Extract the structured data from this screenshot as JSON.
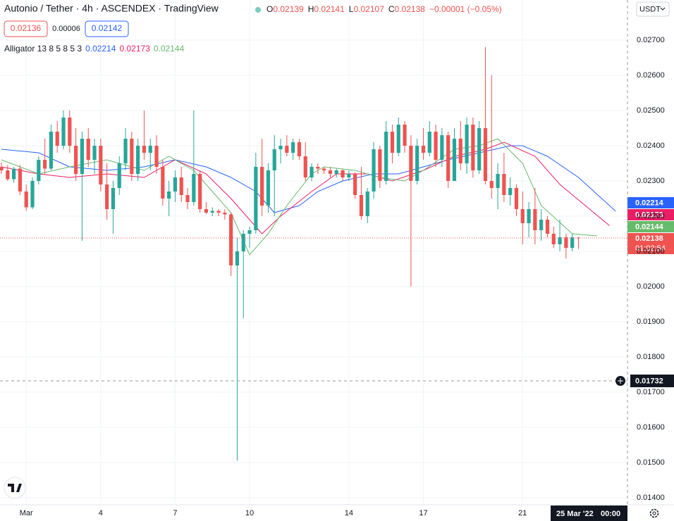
{
  "chart_data": {
    "type": "candlestick",
    "title": "Autonio / Tether · 4h · ASCENDEX · TradingView",
    "ohlc_labels": [
      "O",
      "H",
      "L",
      "C"
    ],
    "change": "−0.00001 (−0.05%)",
    "bid": 0.02136,
    "spread": 6e-05,
    "ask": 0.02142,
    "indicator": "Alligator 13 8 5 8 5 3",
    "currency": "USDT",
    "countdown": "01:02:54",
    "crosshair_price": 0.01732,
    "crosshair_time": "25 Mar '22",
    "crosshair_clock": "00:00",
    "up_color": "#26a69a",
    "down_color": "#ef5350",
    "grid": true,
    "ylim": [
      0.0138,
      0.02814
    ],
    "xlim": [
      -0.23,
      100.9
    ],
    "yticks": [
      {
        "value": 0.014,
        "label": "0.01400"
      },
      {
        "value": 0.015,
        "label": "0.01500"
      },
      {
        "value": 0.016,
        "label": "0.01600"
      },
      {
        "value": 0.017,
        "label": "0.01700"
      },
      {
        "value": 0.018,
        "label": "0.01800"
      },
      {
        "value": 0.019,
        "label": "0.01900"
      },
      {
        "value": 0.02,
        "label": "0.02000"
      },
      {
        "value": 0.021,
        "label": "0.02100"
      },
      {
        "value": 0.022,
        "label": "0.02200"
      },
      {
        "value": 0.023,
        "label": "0.02300"
      },
      {
        "value": 0.024,
        "label": "0.02400"
      },
      {
        "value": 0.025,
        "label": "0.02500"
      },
      {
        "value": 0.026,
        "label": "0.02600"
      },
      {
        "value": 0.027,
        "label": "0.02700"
      }
    ],
    "xticks": [
      {
        "value": 4,
        "label": "Mar"
      },
      {
        "value": 16,
        "label": "4"
      },
      {
        "value": 28,
        "label": "7"
      },
      {
        "value": 40,
        "label": "10"
      },
      {
        "value": 56,
        "label": "14"
      },
      {
        "value": 68,
        "label": "17"
      },
      {
        "value": 84,
        "label": "21"
      }
    ],
    "candles": [
      [
        0.0234,
        0.02352,
        0.0232,
        0.0233
      ],
      [
        0.0233,
        0.02345,
        0.023,
        0.02305
      ],
      [
        0.02305,
        0.0234,
        0.02295,
        0.02335
      ],
      [
        0.02335,
        0.02345,
        0.0226,
        0.0227
      ],
      [
        0.0227,
        0.0229,
        0.02215,
        0.02225
      ],
      [
        0.02225,
        0.0231,
        0.0222,
        0.023
      ],
      [
        0.023,
        0.0237,
        0.0229,
        0.0236
      ],
      [
        0.0236,
        0.0242,
        0.0232,
        0.02335
      ],
      [
        0.02335,
        0.0246,
        0.0233,
        0.0244
      ],
      [
        0.0244,
        0.0247,
        0.0238,
        0.024
      ],
      [
        0.024,
        0.025,
        0.0239,
        0.0248
      ],
      [
        0.0248,
        0.025,
        0.0238,
        0.024
      ],
      [
        0.024,
        0.0245,
        0.023,
        0.0232
      ],
      [
        0.0232,
        0.0244,
        0.0213,
        0.0242
      ],
      [
        0.0242,
        0.0245,
        0.0234,
        0.0236
      ],
      [
        0.0236,
        0.0242,
        0.0232,
        0.024
      ],
      [
        0.024,
        0.0242,
        0.0227,
        0.0229
      ],
      [
        0.0229,
        0.0235,
        0.0219,
        0.0222
      ],
      [
        0.0222,
        0.023,
        0.0215,
        0.0228
      ],
      [
        0.0228,
        0.0237,
        0.0226,
        0.0235
      ],
      [
        0.0235,
        0.0245,
        0.0233,
        0.0242
      ],
      [
        0.0242,
        0.0244,
        0.023,
        0.0232
      ],
      [
        0.0232,
        0.0242,
        0.023,
        0.024
      ],
      [
        0.024,
        0.025,
        0.0236,
        0.0238
      ],
      [
        0.0238,
        0.0242,
        0.0233,
        0.024
      ],
      [
        0.024,
        0.0243,
        0.0232,
        0.0234
      ],
      [
        0.0234,
        0.0236,
        0.0223,
        0.0225
      ],
      [
        0.0225,
        0.023,
        0.022,
        0.0227
      ],
      [
        0.0227,
        0.0233,
        0.0224,
        0.0231
      ],
      [
        0.0231,
        0.0234,
        0.0224,
        0.0226
      ],
      [
        0.0226,
        0.0228,
        0.0222,
        0.0224
      ],
      [
        0.0224,
        0.025,
        0.0223,
        0.0232
      ],
      [
        0.0232,
        0.0233,
        0.0221,
        0.0222
      ],
      [
        0.0222,
        0.0224,
        0.02205,
        0.0221
      ],
      [
        0.0221,
        0.02225,
        0.022,
        0.02215
      ],
      [
        0.02215,
        0.0222,
        0.022,
        0.0221
      ],
      [
        0.0221,
        0.0222,
        0.0219,
        0.02205
      ],
      [
        0.02205,
        0.0221,
        0.0203,
        0.0206
      ],
      [
        0.0206,
        0.0214,
        0.01505,
        0.021
      ],
      [
        0.021,
        0.0216,
        0.0191,
        0.0215
      ],
      [
        0.0215,
        0.0217,
        0.0211,
        0.0216
      ],
      [
        0.0216,
        0.0238,
        0.0215,
        0.0234
      ],
      [
        0.0234,
        0.0242,
        0.022,
        0.0223
      ],
      [
        0.0223,
        0.0235,
        0.0221,
        0.0233
      ],
      [
        0.0233,
        0.0243,
        0.022,
        0.0239
      ],
      [
        0.0239,
        0.0242,
        0.0235,
        0.024
      ],
      [
        0.024,
        0.0243,
        0.0237,
        0.0238
      ],
      [
        0.0238,
        0.0242,
        0.0236,
        0.0241
      ],
      [
        0.0241,
        0.0242,
        0.0236,
        0.0237
      ],
      [
        0.0237,
        0.0241,
        0.023,
        0.0231
      ],
      [
        0.0231,
        0.0235,
        0.023,
        0.0234
      ],
      [
        0.0234,
        0.0235,
        0.0232,
        0.02335
      ],
      [
        0.02335,
        0.0234,
        0.0232,
        0.0233
      ],
      [
        0.0233,
        0.0234,
        0.0231,
        0.0232
      ],
      [
        0.0232,
        0.02335,
        0.0231,
        0.0233
      ],
      [
        0.0233,
        0.02335,
        0.023,
        0.0231
      ],
      [
        0.0231,
        0.0233,
        0.023,
        0.0232
      ],
      [
        0.0232,
        0.02325,
        0.0225,
        0.0226
      ],
      [
        0.0226,
        0.0234,
        0.0219,
        0.022
      ],
      [
        0.022,
        0.0228,
        0.0218,
        0.0227
      ],
      [
        0.0227,
        0.0241,
        0.0225,
        0.0239
      ],
      [
        0.0239,
        0.024,
        0.0228,
        0.023
      ],
      [
        0.023,
        0.0247,
        0.0229,
        0.0244
      ],
      [
        0.0244,
        0.0246,
        0.0235,
        0.0238
      ],
      [
        0.0238,
        0.0248,
        0.0237,
        0.0246
      ],
      [
        0.0246,
        0.0247,
        0.0238,
        0.024
      ],
      [
        0.024,
        0.0243,
        0.02,
        0.023
      ],
      [
        0.023,
        0.0242,
        0.0229,
        0.024
      ],
      [
        0.024,
        0.0245,
        0.0236,
        0.0238
      ],
      [
        0.0238,
        0.0247,
        0.0237,
        0.0244
      ],
      [
        0.0244,
        0.0246,
        0.0234,
        0.0236
      ],
      [
        0.0236,
        0.0245,
        0.0234,
        0.0243
      ],
      [
        0.0243,
        0.0244,
        0.0228,
        0.023
      ],
      [
        0.023,
        0.0245,
        0.023,
        0.0242
      ],
      [
        0.0242,
        0.0247,
        0.0233,
        0.0235
      ],
      [
        0.0235,
        0.0248,
        0.0232,
        0.0246
      ],
      [
        0.0246,
        0.0248,
        0.0231,
        0.0233
      ],
      [
        0.0233,
        0.0247,
        0.0232,
        0.0245
      ],
      [
        0.0245,
        0.0268,
        0.0229,
        0.023
      ],
      [
        0.023,
        0.026,
        0.0225,
        0.0228
      ],
      [
        0.0228,
        0.0235,
        0.0222,
        0.0232
      ],
      [
        0.0232,
        0.0238,
        0.0224,
        0.0226
      ],
      [
        0.0226,
        0.0231,
        0.0223,
        0.0228
      ],
      [
        0.0228,
        0.0229,
        0.022,
        0.0222
      ],
      [
        0.0222,
        0.0227,
        0.0212,
        0.0218
      ],
      [
        0.0218,
        0.0224,
        0.0214,
        0.0222
      ],
      [
        0.0222,
        0.0228,
        0.0212,
        0.0216
      ],
      [
        0.0216,
        0.0222,
        0.0213,
        0.0219
      ],
      [
        0.0219,
        0.022,
        0.0214,
        0.0215
      ],
      [
        0.0215,
        0.0217,
        0.0211,
        0.0212
      ],
      [
        0.0212,
        0.0219,
        0.021,
        0.0214
      ],
      [
        0.0214,
        0.0215,
        0.0208,
        0.0211
      ],
      [
        0.0211,
        0.0215,
        0.021,
        0.0214
      ],
      [
        0.02139,
        0.02141,
        0.02107,
        0.02138
      ]
    ],
    "series": [
      {
        "name": "Jaw",
        "color": "#2962ff",
        "x": [
          0,
          6,
          11,
          17,
          23,
          28,
          33,
          37,
          41,
          44,
          48,
          51,
          55,
          60,
          64,
          68,
          72,
          77,
          82,
          84,
          88,
          93,
          99
        ],
        "values": [
          0.0239,
          0.0238,
          0.0234,
          0.0233,
          0.0234,
          0.0236,
          0.0234,
          0.0231,
          0.0227,
          0.0221,
          0.0223,
          0.0227,
          0.023,
          0.0232,
          0.0232,
          0.0234,
          0.0236,
          0.0238,
          0.024,
          0.024,
          0.0237,
          0.0231,
          0.02214
        ]
      },
      {
        "name": "Teeth",
        "color": "#e91e63",
        "x": [
          0,
          6,
          11,
          17,
          23,
          28,
          33,
          37,
          42,
          45,
          50,
          54,
          59,
          63,
          68,
          73,
          78,
          81,
          86,
          90,
          98
        ],
        "values": [
          0.0234,
          0.0232,
          0.0231,
          0.0232,
          0.0231,
          0.0236,
          0.0232,
          0.0225,
          0.0215,
          0.022,
          0.0227,
          0.0232,
          0.0232,
          0.023,
          0.0233,
          0.0237,
          0.0239,
          0.0241,
          0.0237,
          0.0229,
          0.02173
        ]
      },
      {
        "name": "Lips",
        "color": "#66bb6a",
        "x": [
          0,
          6,
          11,
          17,
          23,
          27,
          31,
          34,
          37,
          40,
          43,
          46,
          50,
          52,
          57,
          61,
          65,
          68,
          73,
          77,
          80,
          84,
          87,
          92,
          96
        ],
        "values": [
          0.0236,
          0.0232,
          0.0234,
          0.0236,
          0.0233,
          0.0237,
          0.0233,
          0.0227,
          0.0221,
          0.0209,
          0.0215,
          0.0223,
          0.0232,
          0.0234,
          0.0233,
          0.0231,
          0.023,
          0.0233,
          0.0239,
          0.024,
          0.0242,
          0.0235,
          0.0223,
          0.0215,
          0.02144
        ]
      }
    ]
  }
}
